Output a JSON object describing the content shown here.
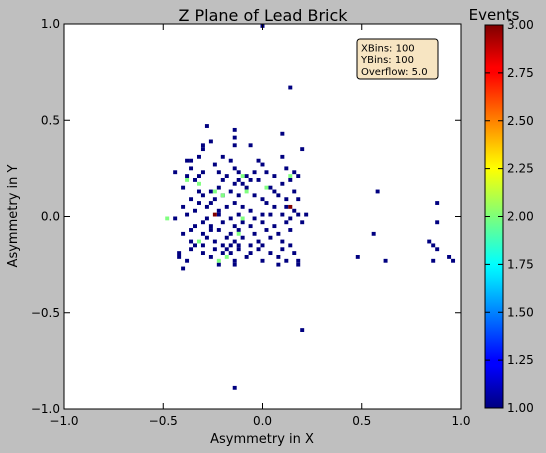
{
  "chart_data": {
    "type": "heatmap",
    "title": "Z Plane of Lead Brick",
    "xlabel": "Asymmetry in X",
    "ylabel": "Asymmetry in Y",
    "xlim": [
      -1.0,
      1.0
    ],
    "ylim": [
      -1.0,
      1.0
    ],
    "xticks": [
      "−1.0",
      "−0.5",
      "0.0",
      "0.5",
      "1.0"
    ],
    "yticks": [
      "−1.0",
      "−0.5",
      "0.0",
      "0.5",
      "1.0"
    ],
    "grid": false,
    "stats_box": {
      "placement": "top-right",
      "lines": [
        "XBins: 100",
        "YBins: 100",
        "Overflow: 5.0"
      ]
    },
    "colorbar": {
      "label": "Events",
      "colormap": "jet",
      "range": [
        1.0,
        3.0
      ],
      "ticks": [
        "1.00",
        "1.25",
        "1.50",
        "1.75",
        "2.00",
        "2.25",
        "2.50",
        "2.75",
        "3.00"
      ]
    },
    "bin_size": 0.02,
    "bins": [
      [
        0.0,
        0.99,
        1
      ],
      [
        0.14,
        0.67,
        1
      ],
      [
        -0.28,
        0.47,
        1
      ],
      [
        -0.14,
        0.45,
        1
      ],
      [
        -0.14,
        0.41,
        1
      ],
      [
        0.1,
        0.43,
        1
      ],
      [
        -0.06,
        0.37,
        1
      ],
      [
        -0.3,
        0.37,
        1
      ],
      [
        -0.26,
        0.39,
        1
      ],
      [
        -0.3,
        0.35,
        1
      ],
      [
        -0.14,
        0.37,
        1
      ],
      [
        -0.2,
        0.31,
        1
      ],
      [
        0.2,
        0.35,
        1
      ],
      [
        -0.36,
        0.29,
        1
      ],
      [
        -0.38,
        0.29,
        1
      ],
      [
        -0.32,
        0.31,
        1
      ],
      [
        -0.16,
        0.29,
        1
      ],
      [
        -0.02,
        0.29,
        1
      ],
      [
        0.1,
        0.31,
        1
      ],
      [
        -0.44,
        0.23,
        1
      ],
      [
        -0.36,
        0.25,
        1
      ],
      [
        -0.3,
        0.23,
        1
      ],
      [
        -0.24,
        0.27,
        1
      ],
      [
        -0.14,
        0.25,
        1
      ],
      [
        0.0,
        0.27,
        1
      ],
      [
        0.12,
        0.25,
        1
      ],
      [
        -0.38,
        0.21,
        1
      ],
      [
        -0.34,
        0.19,
        1
      ],
      [
        -0.32,
        0.21,
        1
      ],
      [
        -0.22,
        0.23,
        1
      ],
      [
        -0.18,
        0.21,
        1
      ],
      [
        -0.12,
        0.23,
        1
      ],
      [
        -0.08,
        0.21,
        1
      ],
      [
        0.02,
        0.23,
        1
      ],
      [
        0.06,
        0.21,
        1
      ],
      [
        0.14,
        0.19,
        1
      ],
      [
        0.18,
        0.21,
        1
      ],
      [
        -0.04,
        0.23,
        1
      ],
      [
        0.16,
        0.23,
        1
      ],
      [
        -0.2,
        0.19,
        1
      ],
      [
        -0.14,
        0.17,
        1
      ],
      [
        -0.12,
        0.19,
        1
      ],
      [
        -0.1,
        0.17,
        1
      ],
      [
        -0.06,
        0.19,
        1
      ],
      [
        -0.02,
        0.19,
        1
      ],
      [
        0.1,
        0.17,
        1
      ],
      [
        -0.4,
        0.15,
        1
      ],
      [
        -0.32,
        0.13,
        1
      ],
      [
        -0.26,
        0.13,
        1
      ],
      [
        -0.22,
        0.15,
        1
      ],
      [
        -0.16,
        0.13,
        1
      ],
      [
        -0.08,
        0.15,
        1
      ],
      [
        0.04,
        0.15,
        1
      ],
      [
        0.16,
        0.13,
        1
      ],
      [
        -0.36,
        0.09,
        1
      ],
      [
        -0.3,
        0.11,
        1
      ],
      [
        -0.24,
        0.09,
        1
      ],
      [
        -0.2,
        0.11,
        1
      ],
      [
        -0.12,
        0.11,
        1
      ],
      [
        -0.04,
        0.11,
        1
      ],
      [
        0.0,
        0.09,
        1
      ],
      [
        0.08,
        0.11,
        1
      ],
      [
        0.12,
        0.09,
        1
      ],
      [
        0.06,
        0.13,
        1
      ],
      [
        0.18,
        0.09,
        1
      ],
      [
        -0.26,
        0.07,
        1
      ],
      [
        -0.14,
        0.07,
        1
      ],
      [
        -0.4,
        0.05,
        1
      ],
      [
        -0.34,
        0.03,
        1
      ],
      [
        -0.28,
        0.05,
        1
      ],
      [
        -0.22,
        0.03,
        1
      ],
      [
        -0.18,
        0.05,
        1
      ],
      [
        -0.1,
        0.05,
        1
      ],
      [
        -0.06,
        0.03,
        1
      ],
      [
        0.06,
        0.05,
        1
      ],
      [
        0.12,
        0.05,
        1
      ],
      [
        0.16,
        0.03,
        1
      ],
      [
        -0.32,
        0.07,
        1
      ],
      [
        0.02,
        0.07,
        1
      ],
      [
        -0.38,
        0.01,
        1
      ],
      [
        -0.28,
        -0.01,
        1
      ],
      [
        -0.22,
        0.01,
        1
      ],
      [
        -0.16,
        -0.01,
        1
      ],
      [
        -0.12,
        0.01,
        1
      ],
      [
        -0.04,
        -0.01,
        1
      ],
      [
        0.0,
        0.01,
        1
      ],
      [
        0.1,
        0.01,
        1
      ],
      [
        0.14,
        -0.01,
        1
      ],
      [
        0.18,
        0.01,
        1
      ],
      [
        0.22,
        0.01,
        1
      ],
      [
        -0.44,
        -0.01,
        1
      ],
      [
        0.04,
        0.01,
        1
      ],
      [
        -0.34,
        -0.05,
        1
      ],
      [
        -0.3,
        -0.03,
        1
      ],
      [
        -0.26,
        -0.05,
        1
      ],
      [
        -0.2,
        -0.03,
        1
      ],
      [
        -0.14,
        -0.05,
        1
      ],
      [
        -0.1,
        -0.03,
        1
      ],
      [
        -0.06,
        -0.05,
        1
      ],
      [
        0.0,
        -0.03,
        1
      ],
      [
        0.06,
        -0.05,
        1
      ],
      [
        0.12,
        -0.03,
        1
      ],
      [
        0.2,
        -0.03,
        1
      ],
      [
        -0.4,
        -0.09,
        1
      ],
      [
        -0.36,
        -0.07,
        1
      ],
      [
        -0.3,
        -0.09,
        1
      ],
      [
        -0.22,
        -0.07,
        1
      ],
      [
        -0.16,
        -0.09,
        1
      ],
      [
        -0.12,
        -0.07,
        1
      ],
      [
        -0.04,
        -0.09,
        1
      ],
      [
        0.02,
        -0.07,
        1
      ],
      [
        0.08,
        -0.09,
        1
      ],
      [
        0.14,
        -0.07,
        1
      ],
      [
        -0.26,
        -0.07,
        1
      ],
      [
        -0.28,
        -0.11,
        1
      ],
      [
        -0.24,
        -0.13,
        1
      ],
      [
        -0.18,
        -0.11,
        1
      ],
      [
        -0.14,
        -0.13,
        1
      ],
      [
        -0.1,
        -0.11,
        1
      ],
      [
        -0.02,
        -0.13,
        1
      ],
      [
        0.04,
        -0.11,
        1
      ],
      [
        0.1,
        -0.13,
        1
      ],
      [
        -0.36,
        -0.13,
        1
      ],
      [
        -0.3,
        -0.15,
        1
      ],
      [
        -0.2,
        -0.15,
        1
      ],
      [
        -0.16,
        -0.15,
        1
      ],
      [
        -0.12,
        -0.15,
        1
      ],
      [
        -0.06,
        -0.15,
        1
      ],
      [
        0.0,
        -0.15,
        1
      ],
      [
        0.14,
        -0.15,
        1
      ],
      [
        -0.34,
        -0.15,
        1
      ],
      [
        -0.42,
        -0.19,
        1
      ],
      [
        -0.36,
        -0.17,
        1
      ],
      [
        -0.3,
        -0.19,
        1
      ],
      [
        -0.24,
        -0.17,
        1
      ],
      [
        -0.16,
        -0.19,
        1
      ],
      [
        -0.12,
        -0.17,
        1
      ],
      [
        -0.06,
        -0.19,
        1
      ],
      [
        -0.02,
        -0.17,
        1
      ],
      [
        0.04,
        -0.19,
        1
      ],
      [
        0.1,
        -0.17,
        1
      ],
      [
        0.16,
        -0.19,
        1
      ],
      [
        -0.2,
        -0.19,
        1
      ],
      [
        -0.18,
        -0.17,
        1
      ],
      [
        -0.42,
        -0.21,
        1
      ],
      [
        -0.38,
        -0.23,
        1
      ],
      [
        -0.26,
        -0.21,
        1
      ],
      [
        -0.14,
        -0.23,
        1
      ],
      [
        -0.08,
        -0.21,
        1
      ],
      [
        0.0,
        -0.23,
        1
      ],
      [
        0.08,
        -0.21,
        1
      ],
      [
        0.18,
        -0.23,
        1
      ],
      [
        0.12,
        -0.23,
        1
      ],
      [
        -0.4,
        -0.27,
        1
      ],
      [
        -0.22,
        -0.25,
        1
      ],
      [
        -0.14,
        -0.25,
        1
      ],
      [
        0.08,
        -0.25,
        1
      ],
      [
        0.18,
        -0.25,
        1
      ],
      [
        0.2,
        -0.59,
        1
      ],
      [
        -0.14,
        -0.89,
        1
      ],
      [
        0.58,
        0.13,
        1
      ],
      [
        0.56,
        -0.09,
        1
      ],
      [
        0.48,
        -0.21,
        1
      ],
      [
        0.62,
        -0.23,
        1
      ],
      [
        0.88,
        0.07,
        1
      ],
      [
        0.88,
        -0.03,
        1
      ],
      [
        0.84,
        -0.13,
        1
      ],
      [
        0.86,
        -0.15,
        1
      ],
      [
        0.88,
        -0.17,
        1
      ],
      [
        0.86,
        -0.23,
        1
      ],
      [
        0.94,
        -0.21,
        1
      ],
      [
        0.96,
        -0.23,
        1
      ],
      [
        -0.24,
        0.01,
        3
      ],
      [
        0.14,
        0.05,
        3
      ],
      [
        -0.38,
        0.19,
        2
      ],
      [
        -0.32,
        0.17,
        2
      ],
      [
        -0.24,
        0.13,
        2
      ],
      [
        -0.1,
        0.21,
        2
      ],
      [
        -0.08,
        0.13,
        2
      ],
      [
        0.02,
        0.15,
        2
      ],
      [
        0.14,
        0.21,
        2
      ],
      [
        -0.48,
        -0.01,
        2
      ],
      [
        -0.32,
        -0.13,
        2
      ],
      [
        -0.12,
        -0.09,
        2
      ],
      [
        -0.1,
        -0.01,
        2
      ],
      [
        -0.22,
        -0.23,
        2
      ],
      [
        -0.18,
        -0.21,
        2
      ],
      [
        -0.2,
        0.11,
        2
      ]
    ]
  }
}
